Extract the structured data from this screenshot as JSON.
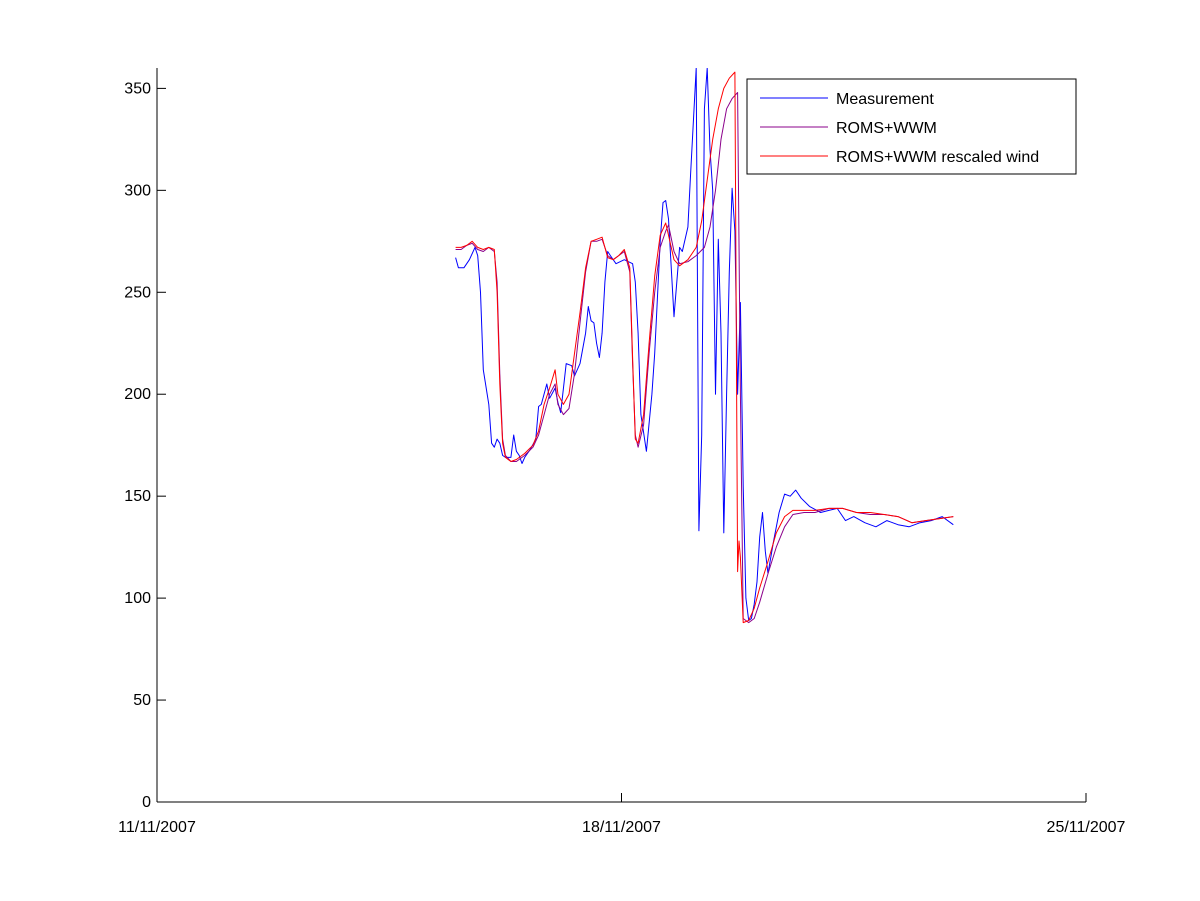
{
  "chart_data": {
    "type": "line",
    "title": "",
    "xlabel": "",
    "ylabel": "",
    "xlim": [
      "11/11/2007",
      "25/11/2007"
    ],
    "ylim": [
      0,
      360
    ],
    "x_ticks": [
      "11/11/2007",
      "18/11/2007",
      "25/11/2007"
    ],
    "y_ticks": [
      0,
      50,
      100,
      150,
      200,
      250,
      300,
      350
    ],
    "grid": false,
    "legend_position": "top-right",
    "series": [
      {
        "name": "Measurement",
        "color": "#0000ff",
        "points": [
          [
            "2007-11-15 12:00",
            267
          ],
          [
            "2007-11-15 13:00",
            262
          ],
          [
            "2007-11-15 15:00",
            262
          ],
          [
            "2007-11-15 17:00",
            266
          ],
          [
            "2007-11-15 19:00",
            272
          ],
          [
            "2007-11-15 20:00",
            268
          ],
          [
            "2007-11-15 21:00",
            250
          ],
          [
            "2007-11-15 22:00",
            212
          ],
          [
            "2007-11-16 00:00",
            195
          ],
          [
            "2007-11-16 01:00",
            176
          ],
          [
            "2007-11-16 02:00",
            174
          ],
          [
            "2007-11-16 03:00",
            178
          ],
          [
            "2007-11-16 04:00",
            176
          ],
          [
            "2007-11-16 05:00",
            170
          ],
          [
            "2007-11-16 06:00",
            169
          ],
          [
            "2007-11-16 08:00",
            169
          ],
          [
            "2007-11-16 09:00",
            180
          ],
          [
            "2007-11-16 10:00",
            172
          ],
          [
            "2007-11-16 11:00",
            170
          ],
          [
            "2007-11-16 12:00",
            166
          ],
          [
            "2007-11-16 13:00",
            169
          ],
          [
            "2007-11-16 15:00",
            173
          ],
          [
            "2007-11-16 17:00",
            178
          ],
          [
            "2007-11-16 18:00",
            194
          ],
          [
            "2007-11-16 19:00",
            195
          ],
          [
            "2007-11-16 21:00",
            205
          ],
          [
            "2007-11-16 22:00",
            198
          ],
          [
            "2007-11-17 00:00",
            203
          ],
          [
            "2007-11-17 01:00",
            196
          ],
          [
            "2007-11-17 02:00",
            191
          ],
          [
            "2007-11-17 04:00",
            215
          ],
          [
            "2007-11-17 06:00",
            214
          ],
          [
            "2007-11-17 07:00",
            209
          ],
          [
            "2007-11-17 09:00",
            215
          ],
          [
            "2007-11-17 11:00",
            230
          ],
          [
            "2007-11-17 12:00",
            243
          ],
          [
            "2007-11-17 13:00",
            236
          ],
          [
            "2007-11-17 14:00",
            235
          ],
          [
            "2007-11-17 15:00",
            225
          ],
          [
            "2007-11-17 16:00",
            218
          ],
          [
            "2007-11-17 17:00",
            230
          ],
          [
            "2007-11-17 18:00",
            255
          ],
          [
            "2007-11-17 19:00",
            270
          ],
          [
            "2007-11-17 20:00",
            268
          ],
          [
            "2007-11-17 22:00",
            264
          ],
          [
            "2007-11-18 01:00",
            266
          ],
          [
            "2007-11-18 04:00",
            264
          ],
          [
            "2007-11-18 05:00",
            255
          ],
          [
            "2007-11-18 06:00",
            230
          ],
          [
            "2007-11-18 07:00",
            190
          ],
          [
            "2007-11-18 09:00",
            172
          ],
          [
            "2007-11-18 11:00",
            200
          ],
          [
            "2007-11-18 12:00",
            220
          ],
          [
            "2007-11-18 14:00",
            275
          ],
          [
            "2007-11-18 15:00",
            294
          ],
          [
            "2007-11-18 16:00",
            295
          ],
          [
            "2007-11-18 17:00",
            286
          ],
          [
            "2007-11-18 19:00",
            238
          ],
          [
            "2007-11-18 20:00",
            255
          ],
          [
            "2007-11-18 21:00",
            272
          ],
          [
            "2007-11-18 22:00",
            270
          ],
          [
            "2007-11-19 00:00",
            282
          ],
          [
            "2007-11-19 01:00",
            308
          ],
          [
            "2007-11-19 03:00",
            360
          ],
          [
            "2007-11-19 04:00",
            133
          ],
          [
            "2007-11-19 05:00",
            180
          ],
          [
            "2007-11-19 06:00",
            340
          ],
          [
            "2007-11-19 07:00",
            360
          ],
          [
            "2007-11-19 08:00",
            320
          ],
          [
            "2007-11-19 09:00",
            300
          ],
          [
            "2007-11-19 10:00",
            200
          ],
          [
            "2007-11-19 11:00",
            276
          ],
          [
            "2007-11-19 12:00",
            230
          ],
          [
            "2007-11-19 13:00",
            132
          ],
          [
            "2007-11-19 14:00",
            200
          ],
          [
            "2007-11-19 15:00",
            260
          ],
          [
            "2007-11-19 16:00",
            301
          ],
          [
            "2007-11-19 17:00",
            280
          ],
          [
            "2007-11-19 18:00",
            200
          ],
          [
            "2007-11-19 19:00",
            245
          ],
          [
            "2007-11-19 20:00",
            155
          ],
          [
            "2007-11-19 21:00",
            100
          ],
          [
            "2007-11-19 22:00",
            89
          ],
          [
            "2007-11-19 23:00",
            90
          ],
          [
            "2007-11-20 00:00",
            97
          ],
          [
            "2007-11-20 01:00",
            108
          ],
          [
            "2007-11-20 02:00",
            130
          ],
          [
            "2007-11-20 03:00",
            142
          ],
          [
            "2007-11-20 04:00",
            123
          ],
          [
            "2007-11-20 05:00",
            112
          ],
          [
            "2007-11-20 07:00",
            128
          ],
          [
            "2007-11-20 09:00",
            142
          ],
          [
            "2007-11-20 11:00",
            151
          ],
          [
            "2007-11-20 13:00",
            150
          ],
          [
            "2007-11-20 15:00",
            153
          ],
          [
            "2007-11-20 17:00",
            149
          ],
          [
            "2007-11-20 20:00",
            145
          ],
          [
            "2007-11-21 00:00",
            142
          ],
          [
            "2007-11-21 03:00",
            143
          ],
          [
            "2007-11-21 06:00",
            144
          ],
          [
            "2007-11-21 09:00",
            138
          ],
          [
            "2007-11-21 12:00",
            140
          ],
          [
            "2007-11-21 16:00",
            137
          ],
          [
            "2007-11-21 20:00",
            135
          ],
          [
            "2007-11-22 00:00",
            138
          ],
          [
            "2007-11-22 04:00",
            136
          ],
          [
            "2007-11-22 08:00",
            135
          ],
          [
            "2007-11-22 12:00",
            137
          ],
          [
            "2007-11-22 16:00",
            138
          ],
          [
            "2007-11-22 20:00",
            140
          ],
          [
            "2007-11-23 00:00",
            136
          ]
        ]
      },
      {
        "name": "ROMS+WWM",
        "color": "#8b008b",
        "points": [
          [
            "2007-11-15 12:00",
            271
          ],
          [
            "2007-11-15 14:00",
            271
          ],
          [
            "2007-11-15 16:00",
            273
          ],
          [
            "2007-11-15 18:00",
            274
          ],
          [
            "2007-11-15 20:00",
            271
          ],
          [
            "2007-11-15 22:00",
            270
          ],
          [
            "2007-11-16 00:00",
            272
          ],
          [
            "2007-11-16 02:00",
            270
          ],
          [
            "2007-11-16 03:00",
            255
          ],
          [
            "2007-11-16 04:00",
            210
          ],
          [
            "2007-11-16 05:00",
            178
          ],
          [
            "2007-11-16 06:00",
            170
          ],
          [
            "2007-11-16 08:00",
            167
          ],
          [
            "2007-11-16 10:00",
            167
          ],
          [
            "2007-11-16 13:00",
            170
          ],
          [
            "2007-11-16 16:00",
            174
          ],
          [
            "2007-11-16 18:00",
            180
          ],
          [
            "2007-11-16 20:00",
            190
          ],
          [
            "2007-11-16 22:00",
            200
          ],
          [
            "2007-11-17 00:00",
            205
          ],
          [
            "2007-11-17 01:00",
            195
          ],
          [
            "2007-11-17 03:00",
            190
          ],
          [
            "2007-11-17 05:00",
            193
          ],
          [
            "2007-11-17 07:00",
            210
          ],
          [
            "2007-11-17 09:00",
            235
          ],
          [
            "2007-11-17 11:00",
            260
          ],
          [
            "2007-11-17 13:00",
            275
          ],
          [
            "2007-11-17 15:00",
            275
          ],
          [
            "2007-11-17 17:00",
            276
          ],
          [
            "2007-11-17 19:00",
            268
          ],
          [
            "2007-11-17 21:00",
            266
          ],
          [
            "2007-11-17 23:00",
            268
          ],
          [
            "2007-11-18 01:00",
            270
          ],
          [
            "2007-11-18 03:00",
            260
          ],
          [
            "2007-11-18 04:00",
            215
          ],
          [
            "2007-11-18 05:00",
            180
          ],
          [
            "2007-11-18 06:00",
            174
          ],
          [
            "2007-11-18 08:00",
            185
          ],
          [
            "2007-11-18 10:00",
            220
          ],
          [
            "2007-11-18 12:00",
            250
          ],
          [
            "2007-11-18 14:00",
            272
          ],
          [
            "2007-11-18 16:00",
            280
          ],
          [
            "2007-11-18 17:00",
            283
          ],
          [
            "2007-11-18 19:00",
            270
          ],
          [
            "2007-11-18 21:00",
            264
          ],
          [
            "2007-11-19 00:00",
            265
          ],
          [
            "2007-11-19 03:00",
            268
          ],
          [
            "2007-11-19 06:00",
            272
          ],
          [
            "2007-11-19 08:00",
            282
          ],
          [
            "2007-11-19 10:00",
            300
          ],
          [
            "2007-11-19 12:00",
            325
          ],
          [
            "2007-11-19 14:00",
            340
          ],
          [
            "2007-11-19 16:00",
            345
          ],
          [
            "2007-11-19 18:00",
            348
          ],
          [
            "2007-11-19 19:00",
            200
          ],
          [
            "2007-11-19 20:00",
            90
          ],
          [
            "2007-11-19 22:00",
            88
          ],
          [
            "2007-11-20 00:00",
            90
          ],
          [
            "2007-11-20 02:00",
            98
          ],
          [
            "2007-11-20 05:00",
            112
          ],
          [
            "2007-11-20 08:00",
            125
          ],
          [
            "2007-11-20 11:00",
            135
          ],
          [
            "2007-11-20 14:00",
            141
          ],
          [
            "2007-11-20 18:00",
            142
          ],
          [
            "2007-11-20 22:00",
            142
          ],
          [
            "2007-11-21 03:00",
            144
          ],
          [
            "2007-11-21 08:00",
            144
          ],
          [
            "2007-11-21 13:00",
            142
          ],
          [
            "2007-11-21 18:00",
            141
          ],
          [
            "2007-11-21 23:00",
            141
          ],
          [
            "2007-11-22 04:00",
            140
          ],
          [
            "2007-11-22 09:00",
            137
          ],
          [
            "2007-11-22 14:00",
            138
          ],
          [
            "2007-11-22 19:00",
            139
          ],
          [
            "2007-11-23 00:00",
            140
          ]
        ]
      },
      {
        "name": "ROMS+WWM rescaled wind",
        "color": "#ff0000",
        "points": [
          [
            "2007-11-15 12:00",
            272
          ],
          [
            "2007-11-15 14:00",
            272
          ],
          [
            "2007-11-15 16:00",
            273
          ],
          [
            "2007-11-15 18:00",
            275
          ],
          [
            "2007-11-15 20:00",
            272
          ],
          [
            "2007-11-15 22:00",
            271
          ],
          [
            "2007-11-16 00:00",
            272
          ],
          [
            "2007-11-16 02:00",
            271
          ],
          [
            "2007-11-16 03:00",
            250
          ],
          [
            "2007-11-16 04:00",
            205
          ],
          [
            "2007-11-16 05:00",
            176
          ],
          [
            "2007-11-16 06:00",
            169
          ],
          [
            "2007-11-16 08:00",
            167
          ],
          [
            "2007-11-16 10:00",
            168
          ],
          [
            "2007-11-16 13:00",
            171
          ],
          [
            "2007-11-16 16:00",
            175
          ],
          [
            "2007-11-16 18:00",
            182
          ],
          [
            "2007-11-16 20:00",
            195
          ],
          [
            "2007-11-16 22:00",
            203
          ],
          [
            "2007-11-17 00:00",
            212
          ],
          [
            "2007-11-17 01:00",
            200
          ],
          [
            "2007-11-17 03:00",
            195
          ],
          [
            "2007-11-17 05:00",
            200
          ],
          [
            "2007-11-17 07:00",
            220
          ],
          [
            "2007-11-17 09:00",
            240
          ],
          [
            "2007-11-17 11:00",
            262
          ],
          [
            "2007-11-17 13:00",
            275
          ],
          [
            "2007-11-17 15:00",
            276
          ],
          [
            "2007-11-17 17:00",
            277
          ],
          [
            "2007-11-17 19:00",
            267
          ],
          [
            "2007-11-17 21:00",
            266
          ],
          [
            "2007-11-17 23:00",
            268
          ],
          [
            "2007-11-18 01:00",
            271
          ],
          [
            "2007-11-18 03:00",
            262
          ],
          [
            "2007-11-18 04:00",
            218
          ],
          [
            "2007-11-18 05:00",
            178
          ],
          [
            "2007-11-18 06:00",
            176
          ],
          [
            "2007-11-18 08:00",
            190
          ],
          [
            "2007-11-18 10:00",
            225
          ],
          [
            "2007-11-18 12:00",
            258
          ],
          [
            "2007-11-18 14:00",
            278
          ],
          [
            "2007-11-18 16:00",
            284
          ],
          [
            "2007-11-18 17:00",
            278
          ],
          [
            "2007-11-18 19:00",
            266
          ],
          [
            "2007-11-18 21:00",
            263
          ],
          [
            "2007-11-19 00:00",
            266
          ],
          [
            "2007-11-19 03:00",
            272
          ],
          [
            "2007-11-19 05:00",
            285
          ],
          [
            "2007-11-19 07:00",
            305
          ],
          [
            "2007-11-19 09:00",
            325
          ],
          [
            "2007-11-19 11:00",
            340
          ],
          [
            "2007-11-19 13:00",
            350
          ],
          [
            "2007-11-19 15:00",
            355
          ],
          [
            "2007-11-19 17:00",
            358
          ],
          [
            "2007-11-19 18:00",
            113
          ],
          [
            "2007-11-19 18:30",
            128
          ],
          [
            "2007-11-19 19:00",
            120
          ],
          [
            "2007-11-19 20:00",
            88
          ],
          [
            "2007-11-19 22:00",
            89
          ],
          [
            "2007-11-20 00:00",
            95
          ],
          [
            "2007-11-20 02:00",
            105
          ],
          [
            "2007-11-20 05:00",
            118
          ],
          [
            "2007-11-20 08:00",
            132
          ],
          [
            "2007-11-20 11:00",
            140
          ],
          [
            "2007-11-20 14:00",
            143
          ],
          [
            "2007-11-20 18:00",
            143
          ],
          [
            "2007-11-20 22:00",
            143
          ],
          [
            "2007-11-21 03:00",
            144
          ],
          [
            "2007-11-21 08:00",
            144
          ],
          [
            "2007-11-21 13:00",
            142
          ],
          [
            "2007-11-21 18:00",
            142
          ],
          [
            "2007-11-21 23:00",
            141
          ],
          [
            "2007-11-22 04:00",
            140
          ],
          [
            "2007-11-22 09:00",
            137
          ],
          [
            "2007-11-22 14:00",
            138
          ],
          [
            "2007-11-22 19:00",
            139
          ],
          [
            "2007-11-23 00:00",
            140
          ]
        ]
      }
    ]
  }
}
